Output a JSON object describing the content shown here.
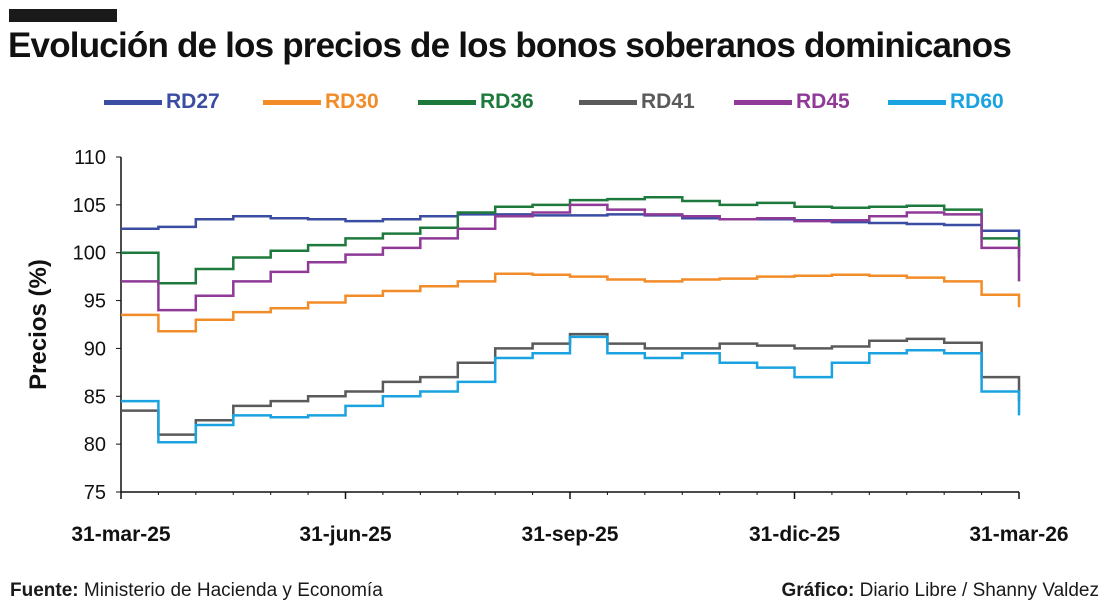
{
  "header": {
    "title": "Evolución de los precios de los bonos soberanos dominicanos"
  },
  "footer": {
    "source_label": "Fuente:",
    "source_text": " Ministerio de Hacienda y Economía",
    "credit_label": "Gráfico:",
    "credit_text": " Diario Libre / Shanny Valdez"
  },
  "colors": {
    "RD27": "#3b4da3",
    "RD30": "#f28c28",
    "RD36": "#1e7a3c",
    "RD41": "#5a5a5a",
    "RD45": "#8e3a96",
    "RD60": "#1aa3e0"
  },
  "chart_data": {
    "type": "line",
    "title": "Evolución de los precios de los bonos soberanos dominicanos",
    "ylabel": "Precios (%)",
    "xlabel": "",
    "ylim": [
      75,
      110
    ],
    "yticks": [
      75,
      80,
      85,
      90,
      95,
      100,
      105,
      110
    ],
    "xlim": [
      "31-mar-25",
      "31-mar-26"
    ],
    "xticks": [
      "31-mar-25",
      "31-jun-25",
      "31-sep-25",
      "31-dic-25",
      "31-mar-26"
    ],
    "grid": false,
    "legend_position": "top",
    "x": [
      "31-mar-25",
      "15-abr-25",
      "30-abr-25",
      "15-may-25",
      "31-may-25",
      "15-jun-25",
      "30-jun-25",
      "15-jul-25",
      "31-jul-25",
      "15-ago-25",
      "31-ago-25",
      "15-sep-25",
      "30-sep-25",
      "15-oct-25",
      "31-oct-25",
      "15-nov-25",
      "30-nov-25",
      "15-dic-25",
      "31-dic-25",
      "15-ene-26",
      "31-ene-26",
      "15-feb-26",
      "28-feb-26",
      "15-mar-26",
      "31-mar-26"
    ],
    "series": [
      {
        "name": "RD27",
        "values": [
          102.5,
          102.7,
          103.5,
          103.8,
          103.6,
          103.5,
          103.3,
          103.5,
          103.8,
          104.0,
          104.0,
          103.9,
          103.9,
          104.0,
          103.9,
          103.6,
          103.5,
          103.5,
          103.4,
          103.2,
          103.1,
          103.0,
          102.9,
          102.3,
          101.6
        ]
      },
      {
        "name": "RD30",
        "values": [
          93.5,
          91.8,
          93.0,
          93.8,
          94.2,
          94.8,
          95.5,
          96.0,
          96.5,
          97.0,
          97.8,
          97.7,
          97.5,
          97.2,
          97.0,
          97.2,
          97.3,
          97.5,
          97.6,
          97.7,
          97.6,
          97.4,
          97.0,
          95.6,
          94.3
        ]
      },
      {
        "name": "RD36",
        "values": [
          100.0,
          96.8,
          98.3,
          99.5,
          100.2,
          100.8,
          101.5,
          102.0,
          102.6,
          104.2,
          104.8,
          105.0,
          105.5,
          105.6,
          105.8,
          105.4,
          105.0,
          105.2,
          104.8,
          104.7,
          104.8,
          104.9,
          104.5,
          101.5,
          99.5
        ]
      },
      {
        "name": "RD41",
        "values": [
          83.5,
          81.0,
          82.5,
          84.0,
          84.5,
          85.0,
          85.5,
          86.5,
          87.0,
          88.5,
          90.0,
          90.5,
          91.5,
          90.5,
          90.0,
          90.0,
          90.5,
          90.3,
          90.0,
          90.2,
          90.8,
          91.0,
          90.6,
          87.0,
          84.5
        ]
      },
      {
        "name": "RD45",
        "values": [
          97.0,
          94.0,
          95.5,
          97.0,
          98.0,
          99.0,
          99.8,
          100.5,
          101.5,
          102.5,
          103.8,
          104.2,
          105.0,
          104.5,
          104.0,
          103.8,
          103.5,
          103.6,
          103.3,
          103.4,
          103.8,
          104.2,
          104.0,
          100.5,
          97.0
        ]
      },
      {
        "name": "RD60",
        "values": [
          84.5,
          80.2,
          82.0,
          83.0,
          82.8,
          83.0,
          84.0,
          85.0,
          85.5,
          86.5,
          89.0,
          89.5,
          91.2,
          89.5,
          89.0,
          89.5,
          88.5,
          88.0,
          87.0,
          88.5,
          89.5,
          89.8,
          89.5,
          85.5,
          83.0
        ]
      }
    ]
  }
}
